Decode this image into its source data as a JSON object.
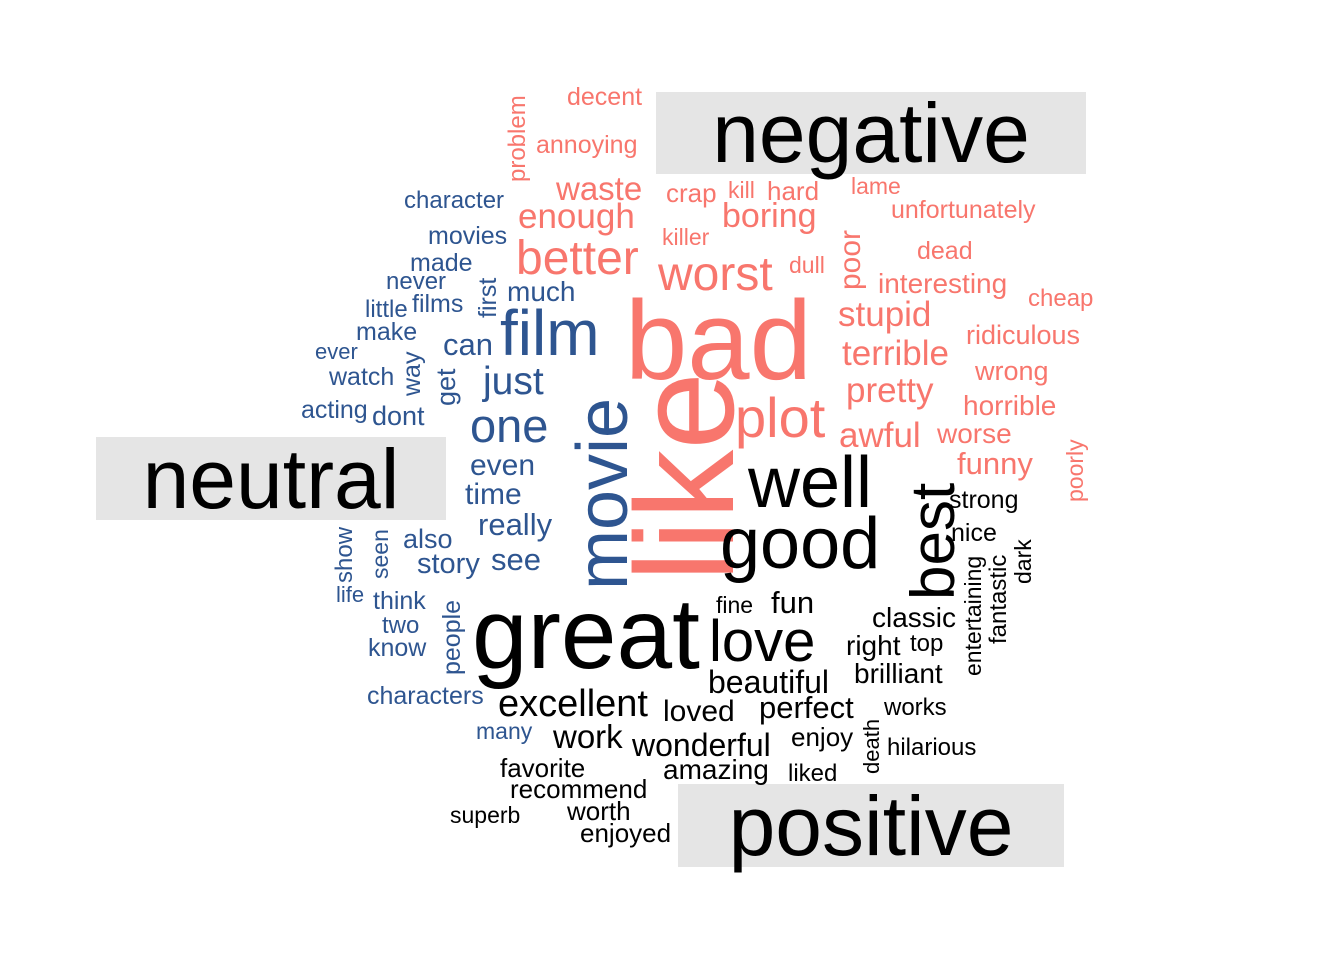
{
  "colors": {
    "negative": "#f8766d",
    "neutral": "#2e5590",
    "positive": "#000000",
    "label_background": "#e5e5e5"
  },
  "labels": {
    "negative": "negative",
    "neutral": "neutral",
    "positive": "positive"
  },
  "words": {
    "negative": [
      "decent",
      "problem",
      "annoying",
      "waste",
      "crap",
      "kill",
      "hard",
      "lame",
      "enough",
      "boring",
      "unfortunately",
      "killer",
      "poor",
      "dead",
      "better",
      "worst",
      "dull",
      "interesting",
      "cheap",
      "bad",
      "stupid",
      "ridiculous",
      "like",
      "terrible",
      "wrong",
      "plot",
      "pretty",
      "horrible",
      "awful",
      "worse",
      "funny",
      "poorly"
    ],
    "neutral": [
      "character",
      "movies",
      "made",
      "never",
      "first",
      "much",
      "films",
      "little",
      "film",
      "make",
      "can",
      "ever",
      "way",
      "watch",
      "just",
      "get",
      "acting",
      "dont",
      "one",
      "movie",
      "even",
      "time",
      "really",
      "also",
      "show",
      "seen",
      "see",
      "story",
      "life",
      "think",
      "people",
      "two",
      "know",
      "characters",
      "many"
    ],
    "positive": [
      "well",
      "good",
      "best",
      "strong",
      "nice",
      "great",
      "entertaining",
      "dark",
      "fantastic",
      "fine",
      "fun",
      "love",
      "classic",
      "right",
      "top",
      "brilliant",
      "beautiful",
      "excellent",
      "loved",
      "perfect",
      "works",
      "work",
      "wonderful",
      "enjoy",
      "death",
      "hilarious",
      "favorite",
      "amazing",
      "liked",
      "recommend",
      "worth",
      "superb",
      "enjoyed"
    ]
  }
}
